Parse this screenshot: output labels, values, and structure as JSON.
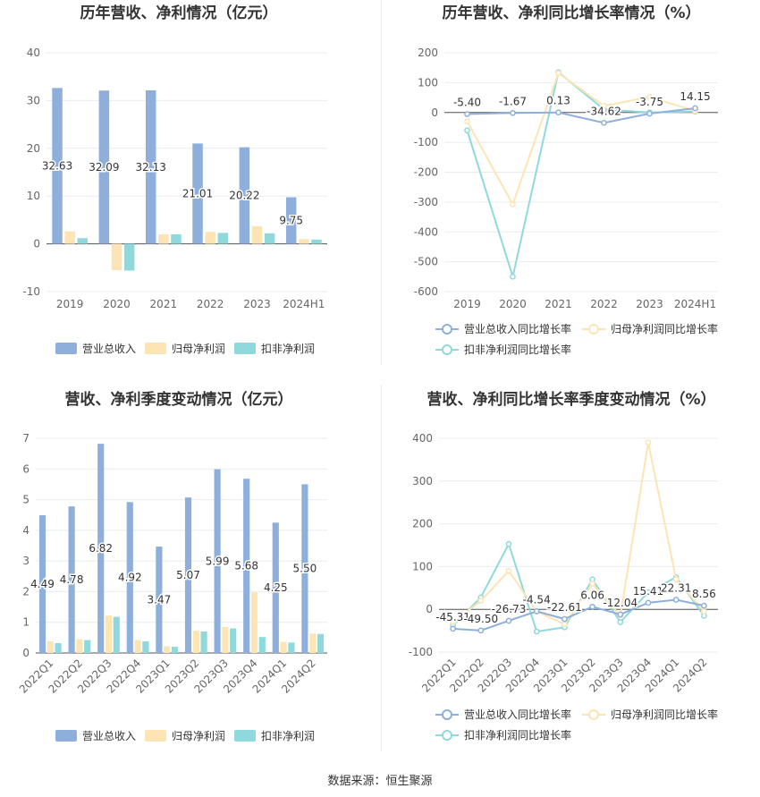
{
  "colors": {
    "revenue": "#8eafdc",
    "net_profit": "#fde4b4",
    "deducted_profit": "#8fd9dd",
    "line_revenue": "#8eafdc",
    "line_net": "#fde4b4",
    "line_deducted": "#8fd9dd",
    "axis_text": "#666666",
    "grid": "#e8ebf0",
    "title": "#333333"
  },
  "source_text": "数据来源：恒生聚源",
  "chart_data": [
    {
      "type": "bar",
      "title": "历年营收、净利情况（亿元）",
      "categories": [
        "2019",
        "2020",
        "2021",
        "2022",
        "2023",
        "2024H1"
      ],
      "ylim": [
        -10,
        40
      ],
      "yticks": [
        -10,
        0,
        10,
        20,
        30,
        40
      ],
      "grid": true,
      "legend": "bottom",
      "series": [
        {
          "name": "营业总收入",
          "color_key": "revenue",
          "values": [
            32.63,
            32.09,
            32.13,
            21.01,
            20.22,
            9.75
          ],
          "labels": [
            "32.63",
            "32.09",
            "32.13",
            "21.01",
            "20.22",
            "9.75"
          ]
        },
        {
          "name": "归母净利润",
          "color_key": "net_profit",
          "values": [
            2.6,
            -5.5,
            2.0,
            2.5,
            3.7,
            1.0
          ]
        },
        {
          "name": "扣非净利润",
          "color_key": "deducted_profit",
          "values": [
            1.2,
            -5.6,
            2.0,
            2.3,
            2.2,
            0.9
          ]
        }
      ]
    },
    {
      "type": "line",
      "title": "历年营收、净利同比增长率情况（%）",
      "categories": [
        "2019",
        "2020",
        "2021",
        "2022",
        "2023",
        "2024H1"
      ],
      "ylim": [
        -600,
        200
      ],
      "yticks": [
        -600,
        -500,
        -400,
        -300,
        -200,
        -100,
        0,
        100,
        200
      ],
      "grid": true,
      "legend": "bottom",
      "series": [
        {
          "name": "营业总收入同比增长率",
          "color_key": "line_revenue",
          "values": [
            -5.4,
            -1.67,
            0.13,
            -34.62,
            -3.75,
            14.15
          ],
          "labels": [
            "-5.40",
            "-1.67",
            "0.13",
            "-34.62",
            "-3.75",
            "14.15"
          ]
        },
        {
          "name": "归母净利润同比增长率",
          "color_key": "line_net",
          "values": [
            -30,
            -308,
            132,
            22,
            52,
            5
          ]
        },
        {
          "name": "扣非净利润同比增长率",
          "color_key": "line_deducted",
          "values": [
            -60,
            -550,
            135,
            10,
            0,
            3
          ]
        }
      ]
    },
    {
      "type": "bar",
      "title": "营收、净利季度变动情况（亿元）",
      "categories": [
        "2022Q1",
        "2022Q2",
        "2022Q3",
        "2022Q4",
        "2023Q1",
        "2023Q2",
        "2023Q3",
        "2023Q4",
        "2024Q1",
        "2024Q2"
      ],
      "ylim": [
        0,
        7
      ],
      "yticks": [
        0,
        1,
        2,
        3,
        4,
        5,
        6,
        7
      ],
      "grid": true,
      "legend": "bottom",
      "series": [
        {
          "name": "营业总收入",
          "color_key": "revenue",
          "values": [
            4.49,
            4.78,
            6.82,
            4.92,
            3.47,
            5.07,
            5.99,
            5.68,
            4.25,
            5.5
          ],
          "labels": [
            "4.49",
            "4.78",
            "6.82",
            "4.92",
            "3.47",
            "5.07",
            "5.99",
            "5.68",
            "4.25",
            "5.50"
          ]
        },
        {
          "name": "归母净利润",
          "color_key": "net_profit",
          "values": [
            0.38,
            0.45,
            1.22,
            0.42,
            0.22,
            0.72,
            0.85,
            1.98,
            0.36,
            0.63
          ]
        },
        {
          "name": "扣非净利润",
          "color_key": "deducted_profit",
          "values": [
            0.32,
            0.42,
            1.18,
            0.38,
            0.2,
            0.7,
            0.8,
            0.52,
            0.34,
            0.62
          ]
        }
      ]
    },
    {
      "type": "line",
      "title": "营收、净利同比增长率季度变动情况（%）",
      "categories": [
        "2022Q1",
        "2022Q2",
        "2022Q3",
        "2022Q4",
        "2023Q1",
        "2023Q2",
        "2023Q3",
        "2023Q4",
        "2024Q1",
        "2024Q2"
      ],
      "ylim": [
        -100,
        400
      ],
      "yticks": [
        -100,
        0,
        100,
        200,
        300,
        400
      ],
      "grid": true,
      "legend": "bottom",
      "series": [
        {
          "name": "营业总收入同比增长率",
          "color_key": "line_revenue",
          "values": [
            -45.31,
            -49.5,
            -26.73,
            -4.54,
            -22.61,
            6.06,
            -12.04,
            15.41,
            22.31,
            8.56
          ],
          "labels": [
            "-45.31",
            "-49.50",
            "-26.73",
            "-4.54",
            "-22.61",
            "6.06",
            "-12.04",
            "15.41",
            "22.31",
            "8.56"
          ]
        },
        {
          "name": "归母净利润同比增长率",
          "color_key": "line_net",
          "values": [
            -30,
            20,
            90,
            -5,
            -35,
            60,
            -15,
            390,
            70,
            -5
          ]
        },
        {
          "name": "扣非净利润同比增长率",
          "color_key": "line_deducted",
          "values": [
            -38,
            28,
            153,
            -52,
            -42,
            70,
            -30,
            40,
            75,
            -15
          ]
        }
      ]
    }
  ]
}
